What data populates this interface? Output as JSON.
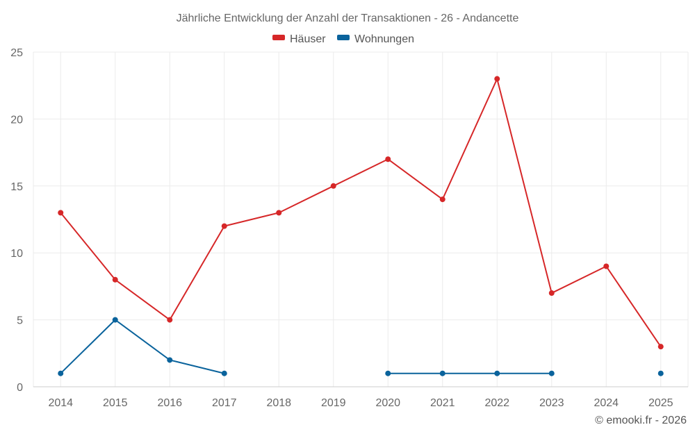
{
  "chart_data": {
    "type": "line",
    "title": "Jährliche Entwicklung der Anzahl der Transaktionen - 26 - Andancette",
    "categories": [
      "2014",
      "2015",
      "2016",
      "2017",
      "2018",
      "2019",
      "2020",
      "2021",
      "2022",
      "2023",
      "2024",
      "2025"
    ],
    "ylim": [
      0,
      25
    ],
    "yticks": [
      0,
      5,
      10,
      15,
      20,
      25
    ],
    "grid": true,
    "legend_position": "top-center",
    "series": [
      {
        "name": "Häuser",
        "color": "#d62728",
        "values": [
          13,
          8,
          5,
          12,
          13,
          15,
          17,
          14,
          23,
          7,
          9,
          3
        ]
      },
      {
        "name": "Wohnungen",
        "color": "#0a639c",
        "values": [
          1,
          5,
          2,
          1,
          null,
          null,
          1,
          1,
          1,
          1,
          null,
          1
        ]
      }
    ],
    "credit": "© emooki.fr - 2026"
  }
}
